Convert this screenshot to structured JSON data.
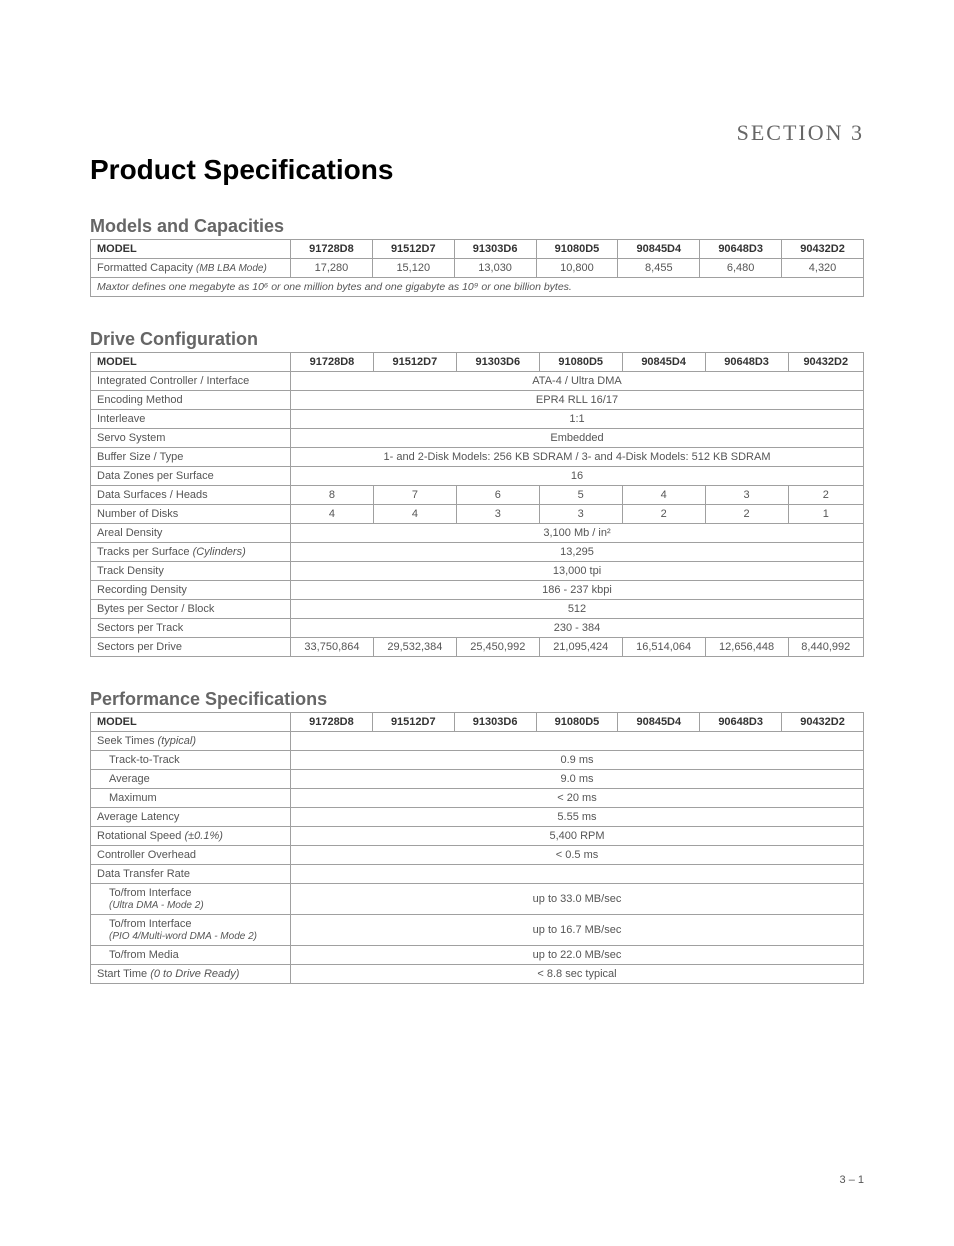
{
  "section_label": "SECTION 3",
  "page_title": "Product Specifications",
  "page_number": "3 – 1",
  "models": [
    "91728D8",
    "91512D7",
    "91303D6",
    "91080D5",
    "90845D4",
    "90648D3",
    "90432D2"
  ],
  "capacities": {
    "heading": "Models and Capacities",
    "header_label": "MODEL",
    "row_label": "Formatted Capacity",
    "row_label_note": "(MB LBA Mode)",
    "values": [
      "17,280",
      "15,120",
      "13,030",
      "10,800",
      "8,455",
      "6,480",
      "4,320"
    ],
    "footnote": "Maxtor defines one megabyte as 10⁶ or one million bytes and one gigabyte as 10⁹ or one billion bytes."
  },
  "drive_config": {
    "heading": "Drive Configuration",
    "header_label": "MODEL",
    "rows": [
      {
        "label": "Integrated Controller / Interface",
        "span": "ATA-4 / Ultra DMA"
      },
      {
        "label": "Encoding Method",
        "span": "EPR4 RLL 16/17"
      },
      {
        "label": "Interleave",
        "span": "1:1"
      },
      {
        "label": "Servo System",
        "span": "Embedded"
      },
      {
        "label": "Buffer Size / Type",
        "span": "1- and 2-Disk Models: 256 KB SDRAM / 3- and 4-Disk Models: 512 KB SDRAM"
      },
      {
        "label": "Data Zones per Surface",
        "span": "16"
      },
      {
        "label": "Data Surfaces / Heads",
        "cells": [
          "8",
          "7",
          "6",
          "5",
          "4",
          "3",
          "2"
        ]
      },
      {
        "label": "Number of Disks",
        "cells": [
          "4",
          "4",
          "3",
          "3",
          "2",
          "2",
          "1"
        ]
      },
      {
        "label": "Areal Density",
        "span": "3,100 Mb / in²"
      },
      {
        "label": "Tracks per Surface",
        "label_note": "(Cylinders)",
        "span": "13,295"
      },
      {
        "label": "Track Density",
        "span": "13,000 tpi"
      },
      {
        "label": "Recording Density",
        "span": "186 - 237 kbpi"
      },
      {
        "label": "Bytes per Sector / Block",
        "span": "512"
      },
      {
        "label": "Sectors per Track",
        "span": "230 - 384"
      },
      {
        "label": "Sectors per Drive",
        "cells": [
          "33,750,864",
          "29,532,384",
          "25,450,992",
          "21,095,424",
          "16,514,064",
          "12,656,448",
          "8,440,992"
        ]
      }
    ]
  },
  "performance": {
    "heading": "Performance  Specifications",
    "header_label": "MODEL",
    "rows": [
      {
        "label": "Seek Times",
        "label_note": "(typical)",
        "span": ""
      },
      {
        "label": "Track-to-Track",
        "indent": true,
        "span": "0.9 ms"
      },
      {
        "label": "Average",
        "indent": true,
        "span": "9.0 ms"
      },
      {
        "label": "Maximum",
        "indent": true,
        "span": "< 20 ms"
      },
      {
        "label": "Average Latency",
        "span": "5.55 ms"
      },
      {
        "label": "Rotational Speed",
        "label_note": "(±0.1%)",
        "span": "5,400 RPM"
      },
      {
        "label": "Controller Overhead",
        "span": "< 0.5 ms"
      },
      {
        "label": "Data Transfer Rate",
        "span": ""
      },
      {
        "label": "To/from Interface",
        "label_line2": "(Ultra DMA - Mode 2)",
        "indent": true,
        "span": "up to 33.0 MB/sec"
      },
      {
        "label": "To/from Interface",
        "label_line2": "(PIO 4/Multi-word DMA - Mode 2)",
        "indent": true,
        "span": "up to 16.7 MB/sec"
      },
      {
        "label": "To/from Media",
        "indent": true,
        "span": "up to 22.0 MB/sec"
      },
      {
        "label": "Start Time",
        "label_note": "(0 to Drive Ready)",
        "span": "< 8.8 sec typical"
      }
    ]
  }
}
